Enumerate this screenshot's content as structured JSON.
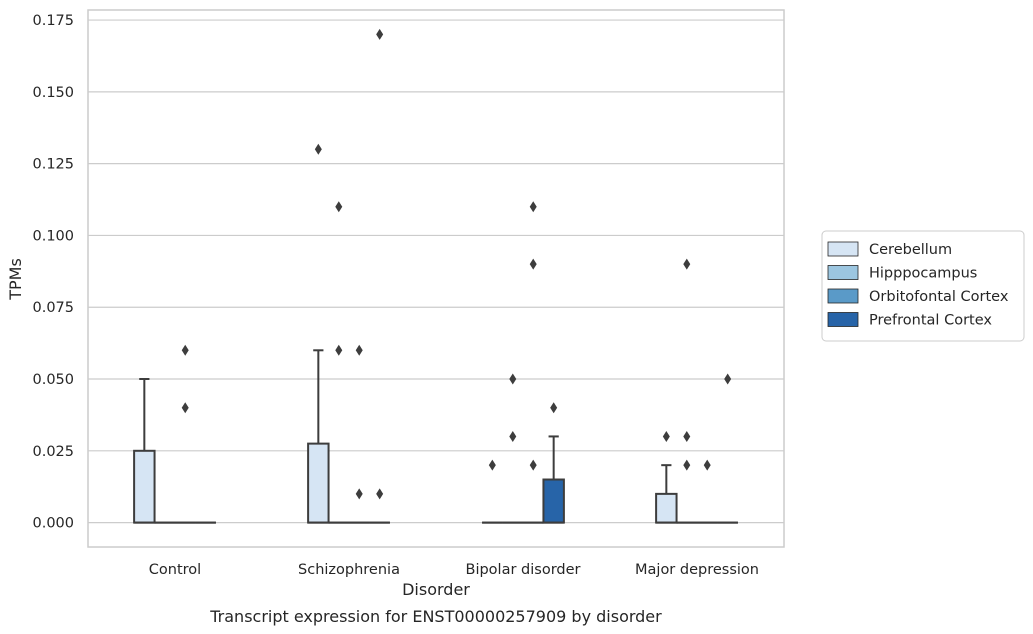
{
  "chart_data": {
    "type": "box",
    "title": "",
    "caption": "Transcript expression for ENST00000257909 by disorder",
    "xlabel": "Disorder",
    "ylabel": "TPMs",
    "ylim": [
      -0.0085,
      0.1785
    ],
    "yticks": [
      0.0,
      0.025,
      0.05,
      0.075,
      0.1,
      0.125,
      0.15,
      0.175
    ],
    "ytick_labels": [
      "0.000",
      "0.025",
      "0.050",
      "0.075",
      "0.100",
      "0.125",
      "0.150",
      "0.175"
    ],
    "grid": true,
    "legend_position": "right",
    "categories": [
      "Control",
      "Schizophrenia",
      "Bipolar disorder",
      "Major depression"
    ],
    "series": [
      {
        "name": "Cerebellum",
        "color": "#d6e5f4",
        "boxes": [
          {
            "q1": 0,
            "median": 0,
            "q3": 0.025,
            "whisker_low": 0,
            "whisker_high": 0.05,
            "outliers": []
          },
          {
            "q1": 0,
            "median": 0,
            "q3": 0.0275,
            "whisker_low": 0,
            "whisker_high": 0.06,
            "outliers": [
              0.13
            ]
          },
          {
            "q1": 0,
            "median": 0,
            "q3": 0,
            "whisker_low": 0,
            "whisker_high": 0,
            "outliers": [
              0.02
            ]
          },
          {
            "q1": 0,
            "median": 0,
            "q3": 0.01,
            "whisker_low": 0,
            "whisker_high": 0.02,
            "outliers": [
              0.03
            ]
          }
        ]
      },
      {
        "name": "Hipppocampus",
        "color": "#9cc6e0",
        "boxes": [
          {
            "q1": 0,
            "median": 0,
            "q3": 0,
            "whisker_low": 0,
            "whisker_high": 0,
            "outliers": []
          },
          {
            "q1": 0,
            "median": 0,
            "q3": 0,
            "whisker_low": 0,
            "whisker_high": 0,
            "outliers": [
              0.11,
              0.06
            ]
          },
          {
            "q1": 0,
            "median": 0,
            "q3": 0,
            "whisker_low": 0,
            "whisker_high": 0,
            "outliers": [
              0.05,
              0.03
            ]
          },
          {
            "q1": 0,
            "median": 0,
            "q3": 0,
            "whisker_low": 0,
            "whisker_high": 0,
            "outliers": [
              0.09,
              0.03,
              0.02
            ]
          }
        ]
      },
      {
        "name": "Orbitofontal Cortex",
        "color": "#5a9ac8",
        "boxes": [
          {
            "q1": 0,
            "median": 0,
            "q3": 0,
            "whisker_low": 0,
            "whisker_high": 0,
            "outliers": [
              0.06,
              0.04
            ]
          },
          {
            "q1": 0,
            "median": 0,
            "q3": 0,
            "whisker_low": 0,
            "whisker_high": 0,
            "outliers": [
              0.06,
              0.01
            ]
          },
          {
            "q1": 0,
            "median": 0,
            "q3": 0,
            "whisker_low": 0,
            "whisker_high": 0,
            "outliers": [
              0.11,
              0.09,
              0.02
            ]
          },
          {
            "q1": 0,
            "median": 0,
            "q3": 0,
            "whisker_low": 0,
            "whisker_high": 0,
            "outliers": [
              0.02
            ]
          }
        ]
      },
      {
        "name": "Prefrontal Cortex",
        "color": "#2764a8",
        "boxes": [
          {
            "q1": 0,
            "median": 0,
            "q3": 0,
            "whisker_low": 0,
            "whisker_high": 0,
            "outliers": []
          },
          {
            "q1": 0,
            "median": 0,
            "q3": 0,
            "whisker_low": 0,
            "whisker_high": 0,
            "outliers": [
              0.17,
              0.01
            ]
          },
          {
            "q1": 0,
            "median": 0,
            "q3": 0.015,
            "whisker_low": 0,
            "whisker_high": 0.03,
            "outliers": [
              0.04
            ]
          },
          {
            "q1": 0,
            "median": 0,
            "q3": 0,
            "whisker_low": 0,
            "whisker_high": 0,
            "outliers": [
              0.05
            ]
          }
        ]
      }
    ]
  }
}
